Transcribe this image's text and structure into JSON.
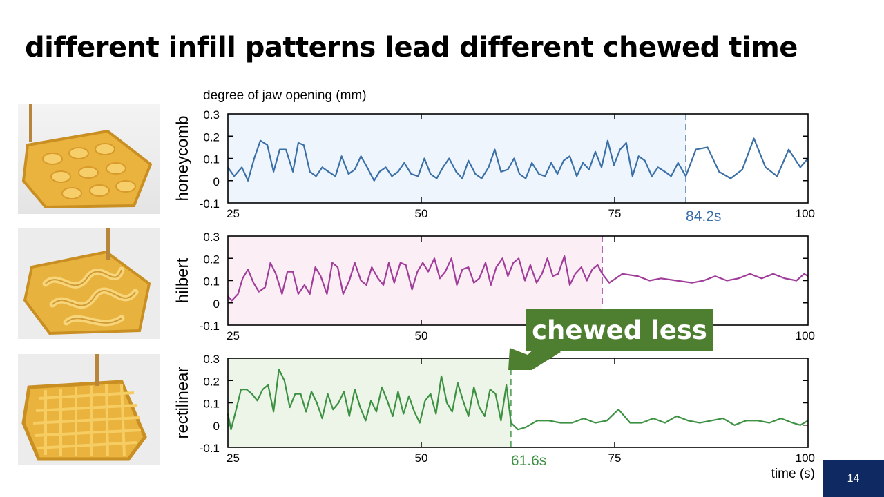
{
  "slide": {
    "title": "different infill patterns lead different chewed time",
    "page_number": "14"
  },
  "callout": {
    "text": "chewed less",
    "color": "#4e7f31"
  },
  "chart_data": {
    "type": "line",
    "ylabel": "degree of jaw opening (mm)",
    "xlabel": "time (s)",
    "xlim": [
      25,
      100
    ],
    "ylim": [
      -0.1,
      0.3
    ],
    "xticks": [
      25,
      50,
      75,
      100
    ],
    "yticks": [
      0.3,
      0.2,
      0.1,
      0,
      -0.1
    ],
    "ytick_labels": [
      "0.3",
      "0.2",
      "0.1",
      "0",
      "-0.1"
    ],
    "panels": [
      {
        "name": "honeycomb",
        "color": "#3a6fa8",
        "fill": "#eef5fc",
        "end_time": 84.2,
        "end_label": "84.2s",
        "x": [
          25,
          25.8,
          26.8,
          27.6,
          28.4,
          29.2,
          30.1,
          30.9,
          31.7,
          32.5,
          33.4,
          34.1,
          34.8,
          35.6,
          36.4,
          37.2,
          38.0,
          38.9,
          39.7,
          40.6,
          41.4,
          42.2,
          43.0,
          43.9,
          44.6,
          45.4,
          46.2,
          47.0,
          47.8,
          48.7,
          49.6,
          50.4,
          51.2,
          52.0,
          52.8,
          53.6,
          54.5,
          55.3,
          56.1,
          57.0,
          57.8,
          58.7,
          59.5,
          60.3,
          61.2,
          62.0,
          62.7,
          63.5,
          64.3,
          65.2,
          66.0,
          66.8,
          67.6,
          68.4,
          69.2,
          70.1,
          70.9,
          71.7,
          72.5,
          73.3,
          74.1,
          74.9,
          75.7,
          76.5,
          77.3,
          78.1,
          78.9,
          79.8,
          80.6,
          81.5,
          82.3,
          83.2,
          84.2,
          85.5,
          87.0,
          88.5,
          90.0,
          91.5,
          93.0,
          94.5,
          96.0,
          97.5,
          99.0,
          100
        ],
        "y": [
          0.06,
          0.02,
          0.06,
          0.0,
          0.1,
          0.18,
          0.16,
          0.04,
          0.14,
          0.14,
          0.04,
          0.17,
          0.16,
          0.04,
          0.02,
          0.06,
          0.04,
          0.02,
          0.11,
          0.03,
          0.05,
          0.11,
          0.06,
          0.0,
          0.04,
          0.06,
          0.02,
          0.04,
          0.08,
          0.03,
          0.02,
          0.1,
          0.03,
          0.01,
          0.06,
          0.1,
          0.04,
          0.01,
          0.09,
          0.03,
          0.01,
          0.06,
          0.14,
          0.04,
          0.05,
          0.1,
          0.03,
          0.01,
          0.08,
          0.03,
          0.02,
          0.08,
          0.03,
          0.09,
          0.11,
          0.02,
          0.08,
          0.05,
          0.13,
          0.06,
          0.18,
          0.07,
          0.14,
          0.17,
          0.02,
          0.11,
          0.09,
          0.02,
          0.06,
          0.04,
          0.02,
          0.08,
          0.02,
          0.14,
          0.15,
          0.04,
          0.01,
          0.05,
          0.19,
          0.06,
          0.02,
          0.14,
          0.06,
          0.1
        ]
      },
      {
        "name": "hilbert",
        "color": "#a03c9a",
        "fill": "#fbeef4",
        "end_time": 73.4,
        "end_label": "",
        "x": [
          25,
          25.5,
          26.3,
          26.9,
          27.6,
          28.3,
          29.0,
          29.8,
          30.5,
          31.2,
          32.0,
          32.7,
          33.4,
          34.1,
          34.9,
          35.6,
          36.3,
          37.0,
          37.8,
          38.5,
          39.2,
          39.9,
          40.7,
          41.4,
          42.2,
          42.9,
          43.6,
          44.4,
          45.1,
          45.8,
          46.5,
          47.3,
          48.0,
          48.8,
          49.5,
          50.2,
          50.9,
          51.7,
          52.4,
          53.1,
          53.9,
          54.6,
          55.3,
          56.1,
          56.8,
          57.5,
          58.3,
          59.0,
          59.7,
          60.5,
          61.2,
          61.9,
          62.6,
          63.4,
          64.1,
          64.9,
          65.6,
          66.3,
          67.0,
          67.7,
          68.5,
          69.2,
          69.9,
          70.7,
          71.4,
          72.1,
          72.8,
          73.4,
          74.3,
          76.0,
          78.0,
          79.5,
          81.0,
          83.0,
          85.0,
          86.5,
          88.0,
          89.5,
          91.0,
          92.5,
          94.0,
          95.5,
          97.0,
          98.5,
          99.5,
          100
        ],
        "y": [
          0.03,
          0.01,
          0.04,
          0.11,
          0.15,
          0.09,
          0.05,
          0.07,
          0.18,
          0.13,
          0.04,
          0.14,
          0.14,
          0.04,
          0.08,
          0.04,
          0.16,
          0.12,
          0.04,
          0.18,
          0.16,
          0.04,
          0.1,
          0.18,
          0.1,
          0.08,
          0.16,
          0.11,
          0.08,
          0.18,
          0.09,
          0.18,
          0.17,
          0.06,
          0.14,
          0.18,
          0.14,
          0.2,
          0.11,
          0.14,
          0.2,
          0.08,
          0.15,
          0.16,
          0.09,
          0.11,
          0.18,
          0.08,
          0.16,
          0.2,
          0.12,
          0.18,
          0.2,
          0.1,
          0.17,
          0.09,
          0.13,
          0.2,
          0.12,
          0.13,
          0.21,
          0.08,
          0.13,
          0.16,
          0.1,
          0.15,
          0.17,
          0.13,
          0.09,
          0.13,
          0.12,
          0.1,
          0.11,
          0.1,
          0.09,
          0.1,
          0.12,
          0.1,
          0.11,
          0.13,
          0.11,
          0.13,
          0.11,
          0.1,
          0.13,
          0.12
        ]
      },
      {
        "name": "rectilinear",
        "color": "#3d9143",
        "fill": "#ecf5e8",
        "end_time": 61.6,
        "end_label": "61.6s",
        "x": [
          25,
          25.4,
          26.0,
          26.7,
          27.4,
          28.1,
          28.8,
          29.5,
          30.2,
          30.9,
          31.6,
          32.3,
          33.0,
          33.7,
          34.4,
          35.1,
          35.8,
          36.5,
          37.2,
          37.9,
          38.6,
          39.3,
          40.0,
          40.7,
          41.4,
          42.1,
          42.8,
          43.5,
          44.2,
          44.9,
          45.6,
          46.3,
          47.0,
          47.7,
          48.4,
          49.1,
          49.8,
          50.5,
          51.2,
          51.9,
          52.6,
          53.3,
          54.0,
          54.7,
          55.4,
          56.1,
          56.8,
          57.5,
          58.2,
          58.9,
          59.6,
          60.3,
          61.0,
          61.6,
          62.5,
          63.5,
          65.0,
          66.5,
          68.0,
          69.5,
          71.0,
          72.5,
          74.0,
          75.5,
          77.0,
          78.5,
          80.0,
          81.5,
          83.0,
          84.5,
          86.0,
          87.5,
          89.0,
          90.5,
          92.0,
          93.5,
          95.0,
          96.5,
          98.0,
          99.0,
          100
        ],
        "y": [
          0.05,
          -0.02,
          0.06,
          0.16,
          0.16,
          0.14,
          0.11,
          0.16,
          0.18,
          0.06,
          0.25,
          0.2,
          0.08,
          0.14,
          0.14,
          0.06,
          0.15,
          0.1,
          0.03,
          0.14,
          0.07,
          0.1,
          0.15,
          0.04,
          0.16,
          0.08,
          0.02,
          0.11,
          0.06,
          0.17,
          0.11,
          0.04,
          0.15,
          0.05,
          0.13,
          0.06,
          0.01,
          0.11,
          0.14,
          0.05,
          0.22,
          0.1,
          0.06,
          0.19,
          0.11,
          0.04,
          0.17,
          0.08,
          0.04,
          0.16,
          0.14,
          0.02,
          0.18,
          0.01,
          -0.02,
          -0.01,
          0.02,
          0.02,
          0.01,
          0.01,
          0.03,
          0.01,
          0.02,
          0.07,
          0.01,
          0.01,
          0.03,
          0.01,
          0.04,
          0.02,
          0.01,
          0.02,
          0.03,
          0.0,
          0.02,
          0.02,
          0.01,
          0.03,
          0.01,
          0.0,
          0.02
        ]
      }
    ]
  }
}
